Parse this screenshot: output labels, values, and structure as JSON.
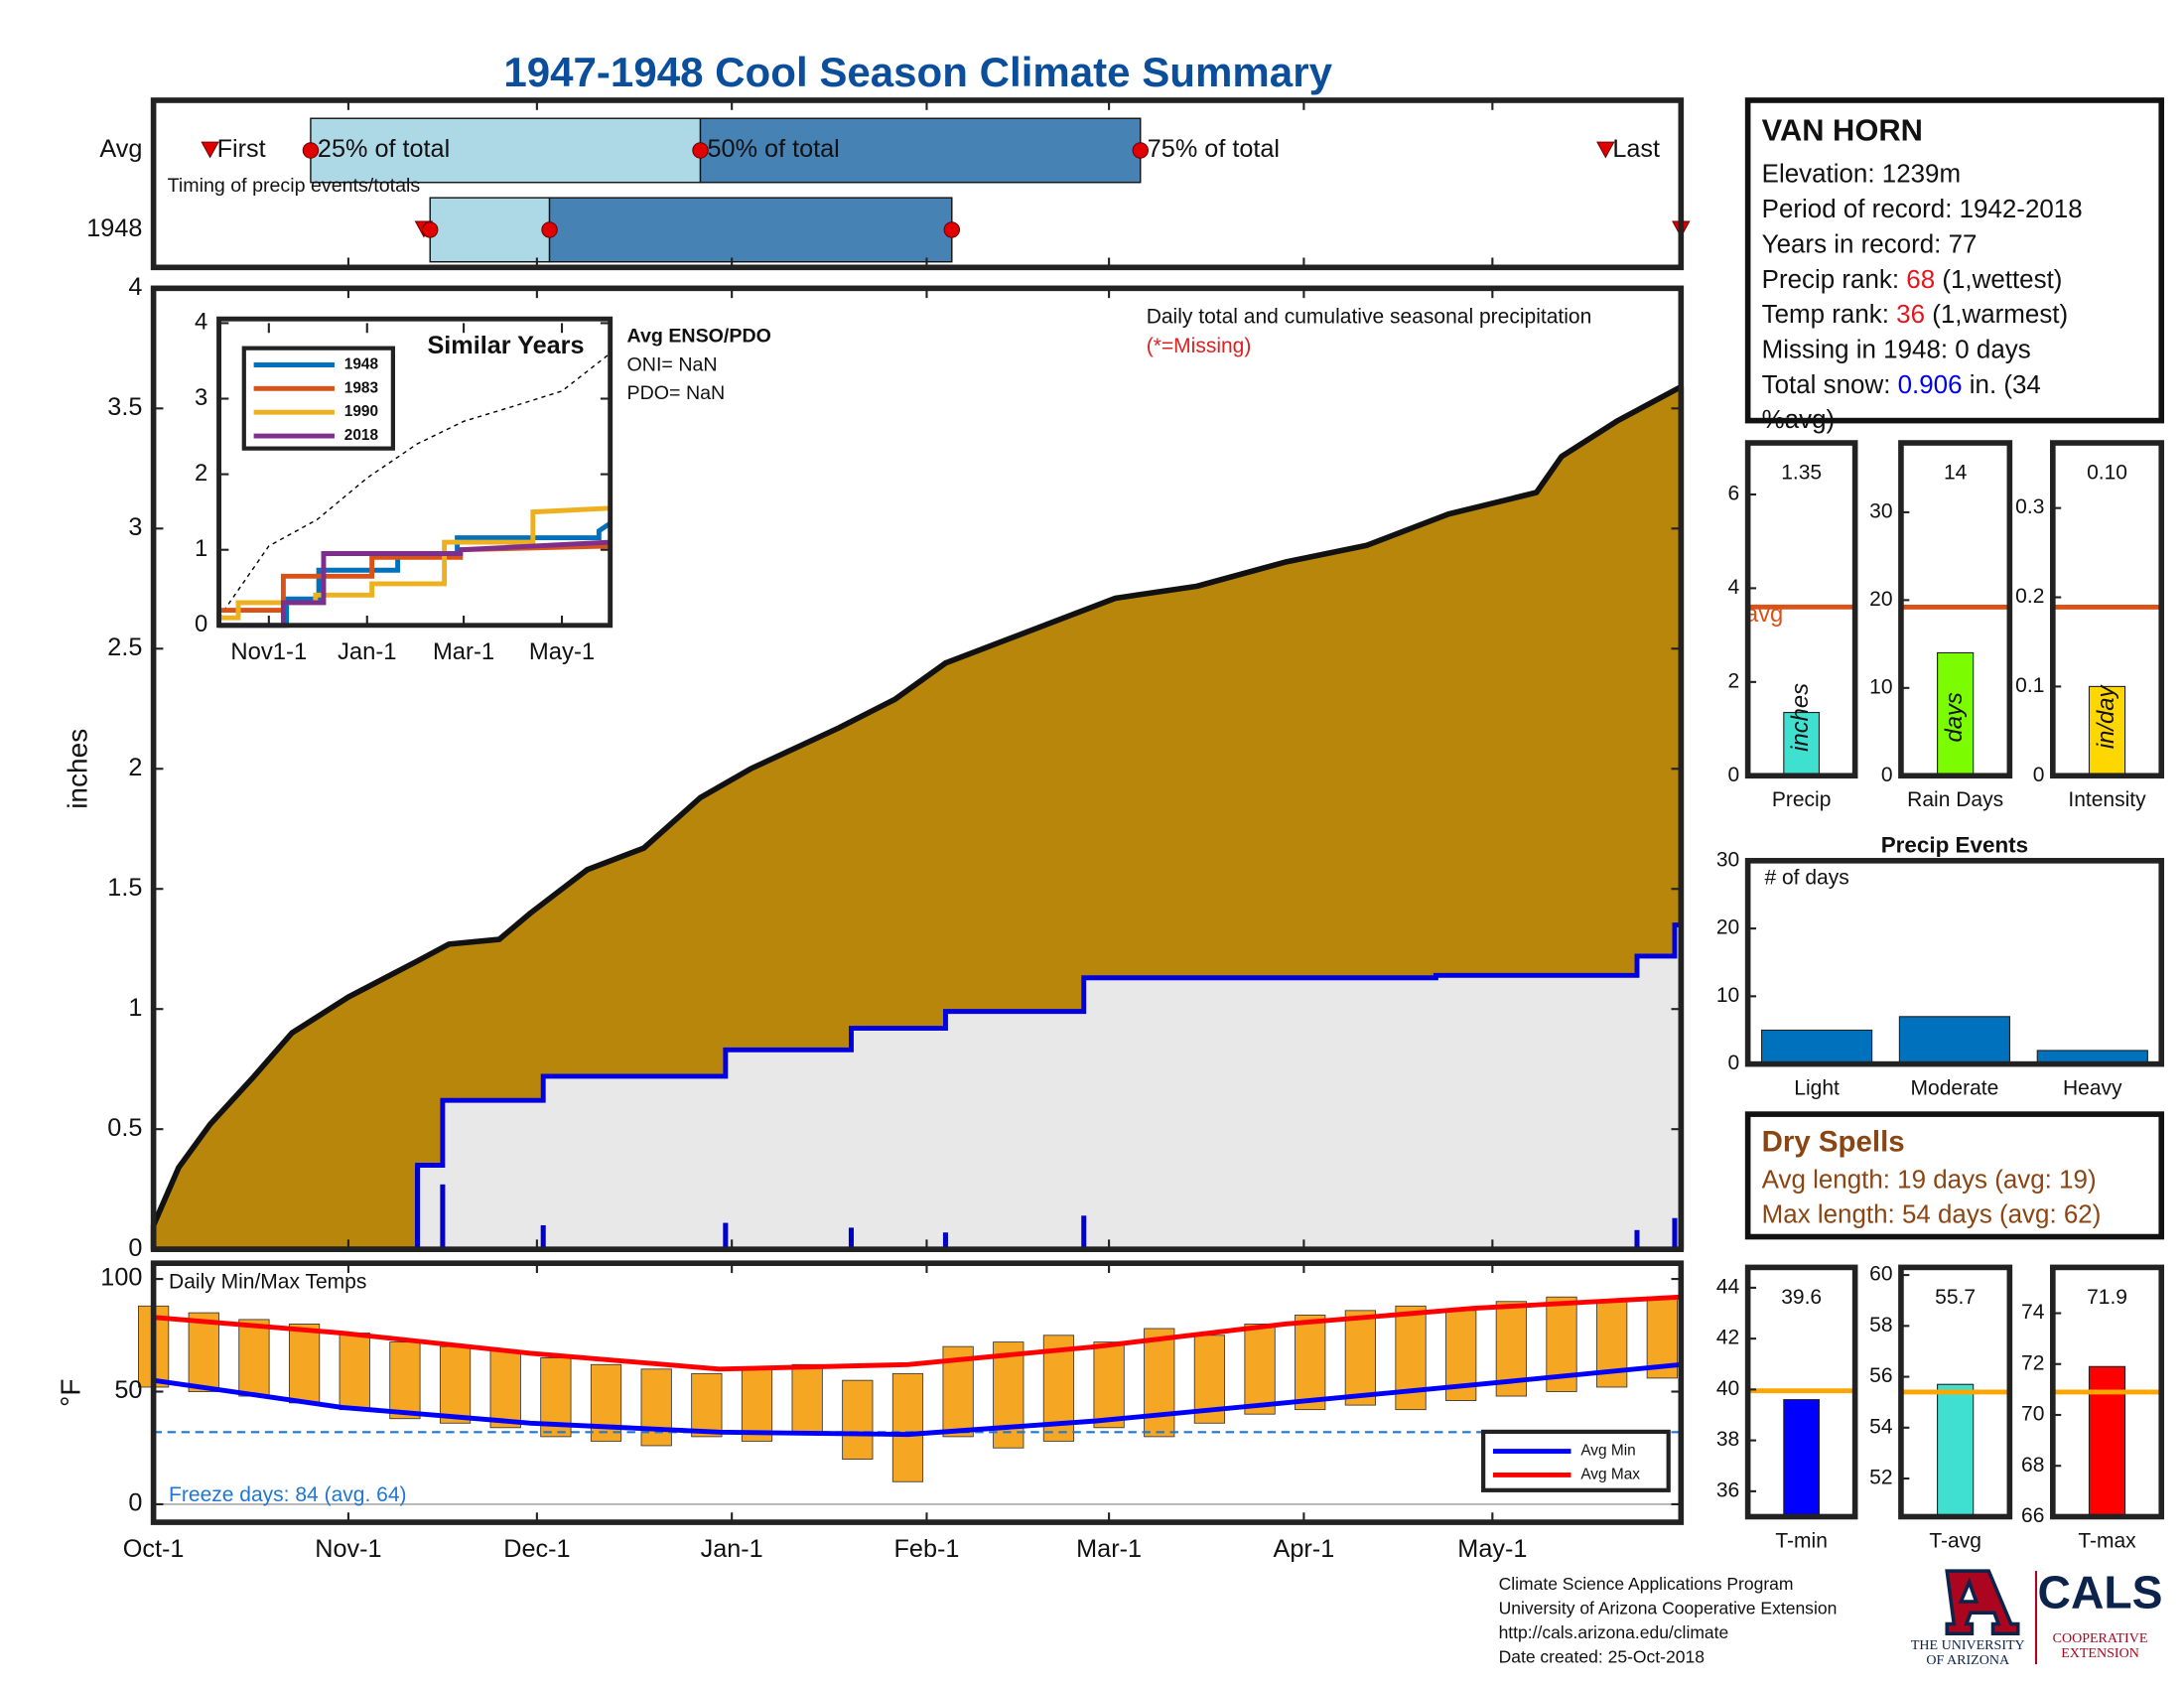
{
  "title": "1947-1948 Cool Season Climate Summary",
  "chart_data": [
    {
      "type": "timing",
      "categories": [
        "Avg",
        "1948"
      ],
      "annotation": "Timing of precip events/totals",
      "marker_labels": [
        "First",
        "25% of total",
        "50% of total",
        "75% of total",
        "Last"
      ],
      "values": [
        [
          9,
          25,
          87,
          157,
          231
        ],
        [
          43,
          44,
          63,
          127,
          243
        ]
      ],
      "colors": [
        "#add8e6",
        "#4682b4"
      ],
      "marker_color": "#e00000",
      "xlim": [
        0,
        243
      ],
      "xticks": [
        0,
        31,
        61,
        92,
        123,
        152,
        183,
        213
      ]
    },
    {
      "type": "area",
      "ylabel": "inches",
      "annotation": "Daily total and cumulative seasonal precipitation",
      "missing_note": "(*=Missing)",
      "xlim": [
        0,
        243
      ],
      "xticks": [
        0,
        31,
        61,
        92,
        123,
        152,
        183,
        213
      ],
      "ylim": [
        0,
        4
      ],
      "yticks": [
        0,
        0.5,
        1,
        1.5,
        2,
        2.5,
        3,
        3.5,
        4
      ],
      "series": [
        {
          "color": "#b8860b",
          "x": [
            0,
            4,
            9,
            16,
            22,
            31,
            42,
            47,
            55,
            60,
            69,
            78,
            87,
            95,
            109,
            118,
            126,
            135,
            144,
            153,
            166,
            180,
            193,
            206,
            220,
            224,
            233,
            243
          ],
          "values": [
            0.1,
            0.34,
            0.52,
            0.72,
            0.9,
            1.05,
            1.2,
            1.27,
            1.29,
            1.4,
            1.58,
            1.67,
            1.88,
            2.0,
            2.17,
            2.29,
            2.44,
            2.53,
            2.62,
            2.71,
            2.76,
            2.86,
            2.93,
            3.06,
            3.15,
            3.3,
            3.45,
            3.59
          ]
        },
        {
          "color": "#0000e0",
          "fill": "#e8e8e8",
          "x": [
            0,
            42,
            42,
            46,
            46,
            62,
            62,
            91,
            91,
            111,
            111,
            126,
            126,
            148,
            148,
            204,
            204,
            236,
            236,
            242,
            242,
            243
          ],
          "values": [
            0,
            0,
            0.35,
            0.35,
            0.62,
            0.62,
            0.72,
            0.72,
            0.83,
            0.83,
            0.92,
            0.92,
            0.99,
            0.99,
            1.13,
            1.13,
            1.14,
            1.14,
            1.22,
            1.22,
            1.35,
            1.35
          ]
        }
      ],
      "daily": {
        "color": "#0000cd",
        "x": [
          42,
          46,
          62,
          91,
          111,
          126,
          148,
          204,
          236,
          242
        ],
        "values": [
          0.35,
          0.27,
          0.1,
          0.11,
          0.09,
          0.07,
          0.14,
          0.01,
          0.08,
          0.13
        ]
      }
    },
    {
      "type": "line",
      "title": "Similar Years",
      "notes": [
        "Avg ENSO/PDO",
        "ONI= NaN",
        "PDO= NaN"
      ],
      "xlim": [
        0,
        243
      ],
      "xticks": [
        {
          "value": 31,
          "label": "Nov1-1"
        },
        {
          "value": 92,
          "label": "Jan-1"
        },
        {
          "value": 152,
          "label": "Mar-1"
        },
        {
          "value": 213,
          "label": "May-1"
        }
      ],
      "ylim": [
        0,
        4
      ],
      "yticks": [
        0,
        1,
        2,
        3,
        4
      ],
      "series": [
        {
          "name": "1948",
          "color": "#0072bd",
          "x": [
            0,
            42,
            42,
            62,
            62,
            111,
            111,
            148,
            148,
            236,
            236,
            243
          ],
          "values": [
            0,
            0,
            0.35,
            0.35,
            0.73,
            0.73,
            0.93,
            0.93,
            1.16,
            1.16,
            1.25,
            1.35
          ]
        },
        {
          "name": "1983",
          "color": "#d95319",
          "x": [
            0,
            40,
            40,
            95,
            95,
            150,
            150,
            243
          ],
          "values": [
            0.2,
            0.2,
            0.65,
            0.65,
            0.9,
            0.9,
            1.0,
            1.05
          ]
        },
        {
          "name": "1990",
          "color": "#edb120",
          "x": [
            0,
            12,
            12,
            60,
            60,
            95,
            95,
            140,
            140,
            195,
            195,
            243
          ],
          "values": [
            0.1,
            0.1,
            0.3,
            0.3,
            0.4,
            0.4,
            0.55,
            0.55,
            1.1,
            1.1,
            1.5,
            1.55
          ]
        },
        {
          "name": "2018",
          "color": "#7e2f8e",
          "x": [
            0,
            40,
            40,
            65,
            65,
            150,
            150,
            243
          ],
          "values": [
            0,
            0,
            0.3,
            0.3,
            0.95,
            0.95,
            1.0,
            1.1
          ]
        }
      ],
      "average": {
        "color": "#000000",
        "x": [
          0,
          31,
          61,
          92,
          123,
          152,
          183,
          213,
          243
        ],
        "values": [
          0.1,
          1.05,
          1.4,
          1.95,
          2.4,
          2.7,
          2.9,
          3.1,
          3.6
        ]
      }
    },
    {
      "type": "range",
      "title": "Daily Min/Max Temps",
      "ylabel": "°F",
      "freeze_note": "Freeze days: 84 (avg. 64)",
      "xlim": [
        0,
        243
      ],
      "xticks": [
        {
          "value": 0,
          "label": "Oct-1"
        },
        {
          "value": 31,
          "label": "Nov-1"
        },
        {
          "value": 61,
          "label": "Dec-1"
        },
        {
          "value": 92,
          "label": "Jan-1"
        },
        {
          "value": 123,
          "label": "Feb-1"
        },
        {
          "value": 152,
          "label": "Mar-1"
        },
        {
          "value": 183,
          "label": "Apr-1"
        },
        {
          "value": 213,
          "label": "May-1"
        }
      ],
      "ylim": [
        -8,
        107
      ],
      "yticks": [
        0,
        50,
        100
      ],
      "bars": {
        "color": "#f5a623",
        "x": [
          0,
          8,
          16,
          24,
          32,
          40,
          48,
          56,
          64,
          72,
          80,
          88,
          96,
          104,
          112,
          120,
          128,
          136,
          144,
          152,
          160,
          168,
          176,
          184,
          192,
          200,
          208,
          216,
          224,
          232,
          240
        ],
        "min": [
          52,
          50,
          48,
          45,
          42,
          38,
          36,
          34,
          30,
          28,
          26,
          30,
          28,
          32,
          20,
          10,
          30,
          25,
          28,
          34,
          30,
          36,
          40,
          42,
          44,
          42,
          46,
          48,
          50,
          52,
          56
        ],
        "max": [
          88,
          85,
          82,
          80,
          76,
          72,
          70,
          68,
          65,
          62,
          60,
          58,
          60,
          62,
          55,
          58,
          70,
          72,
          75,
          72,
          78,
          75,
          80,
          84,
          86,
          88,
          86,
          90,
          92,
          90,
          92
        ]
      },
      "series": [
        {
          "name": "Avg Min",
          "color": "#0000ff",
          "x": [
            0,
            30,
            60,
            90,
            120,
            150,
            180,
            210,
            243
          ],
          "values": [
            55,
            43,
            36,
            32,
            31,
            37,
            45,
            53,
            62
          ]
        },
        {
          "name": "Avg Max",
          "color": "#ff0000",
          "x": [
            0,
            30,
            60,
            90,
            120,
            150,
            180,
            210,
            243
          ],
          "values": [
            83,
            76,
            67,
            60,
            62,
            70,
            80,
            87,
            92
          ]
        }
      ],
      "freeze": {
        "value": 32,
        "color": "#1f77d4"
      }
    },
    {
      "type": "bar",
      "categories": [
        "Precip"
      ],
      "values": [
        1.35
      ],
      "value_labels": [
        "1.35"
      ],
      "unit_label": "inches",
      "color": "#40e0d0",
      "ylim": [
        0,
        7.1
      ],
      "yticks": [
        0,
        2,
        4,
        6
      ],
      "average": 3.6,
      "average_label": "avg",
      "average_color": "#d95319"
    },
    {
      "type": "bar",
      "categories": [
        "Rain Days"
      ],
      "values": [
        14
      ],
      "unit_label": "days",
      "color": "#7cfc00",
      "ylim": [
        0,
        37.9
      ],
      "yticks": [
        0,
        10,
        20,
        30
      ],
      "average": 19.2,
      "average_color": "#d95319"
    },
    {
      "type": "bar",
      "categories": [
        "Intensity"
      ],
      "values": [
        0.1
      ],
      "value_labels": [
        "0.10"
      ],
      "unit_label": "in/day",
      "color": "#ffd700",
      "ylim": [
        0,
        0.373
      ],
      "yticks": [
        0,
        0.1,
        0.2,
        0.3
      ],
      "average": 0.189,
      "average_color": "#d95319"
    },
    {
      "type": "bar",
      "title": "Precip Events",
      "annotation": "# of days",
      "categories": [
        "Light",
        "Moderate",
        "Heavy"
      ],
      "values": [
        5,
        7,
        2
      ],
      "color": "#0072bd",
      "ylim": [
        0,
        30
      ],
      "yticks": [
        0,
        10,
        20,
        30
      ]
    },
    {
      "type": "bar",
      "categories": [
        "T-min"
      ],
      "values": [
        39.6
      ],
      "color": "#0000ff",
      "ylim": [
        35,
        44.8
      ],
      "yticks": [
        36,
        38,
        40,
        42,
        44
      ],
      "average": 39.95,
      "average_color": "#ffa500"
    },
    {
      "type": "bar",
      "categories": [
        "T-avg"
      ],
      "values": [
        55.7
      ],
      "color": "#40e0d0",
      "ylim": [
        50.5,
        60.3
      ],
      "yticks": [
        52,
        54,
        56,
        58,
        60
      ],
      "average": 55.4,
      "average_color": "#ffa500"
    },
    {
      "type": "bar",
      "categories": [
        "T-max"
      ],
      "values": [
        71.9
      ],
      "color": "#ff0000",
      "ylim": [
        66,
        75.8
      ],
      "yticks": [
        66,
        68,
        70,
        72,
        74
      ],
      "average": 70.9,
      "average_color": "#ffa500"
    }
  ],
  "station": {
    "name": "VAN HORN",
    "lines": [
      [
        "Elevation: 1239m"
      ],
      [
        "Period of record: 1942-2018"
      ],
      [
        "Years in record: 77"
      ],
      [
        "Precip rank: ",
        {
          "text": "68",
          "color": "#e8141c"
        },
        " (1,wettest)"
      ],
      [
        "Temp rank: ",
        {
          "text": "36",
          "color": "#e8141c"
        },
        " (1,warmest)"
      ],
      [
        "Missing in 1948: 0 days"
      ],
      [
        "Total snow: ",
        {
          "text": "0.906",
          "color": "#0000ee"
        },
        " in. (34"
      ],
      [
        "%avg)"
      ]
    ]
  },
  "dry_spells": {
    "title": "Dry Spells",
    "lines": [
      "Avg length: 19 days (avg: 19)",
      "Max length: 54 days (avg: 62)"
    ],
    "color": "#8b4513"
  },
  "footer": [
    "Climate Science Applications Program",
    "University of Arizona Cooperative Extension",
    "http://cals.arizona.edu/climate",
    " Date created: 25-Oct-2018"
  ],
  "logo": {
    "university": [
      "THE UNIVERSITY",
      "OF ARIZONA"
    ],
    "cals": "CALS",
    "extension": [
      "COOPERATIVE",
      "EXTENSION"
    ]
  }
}
